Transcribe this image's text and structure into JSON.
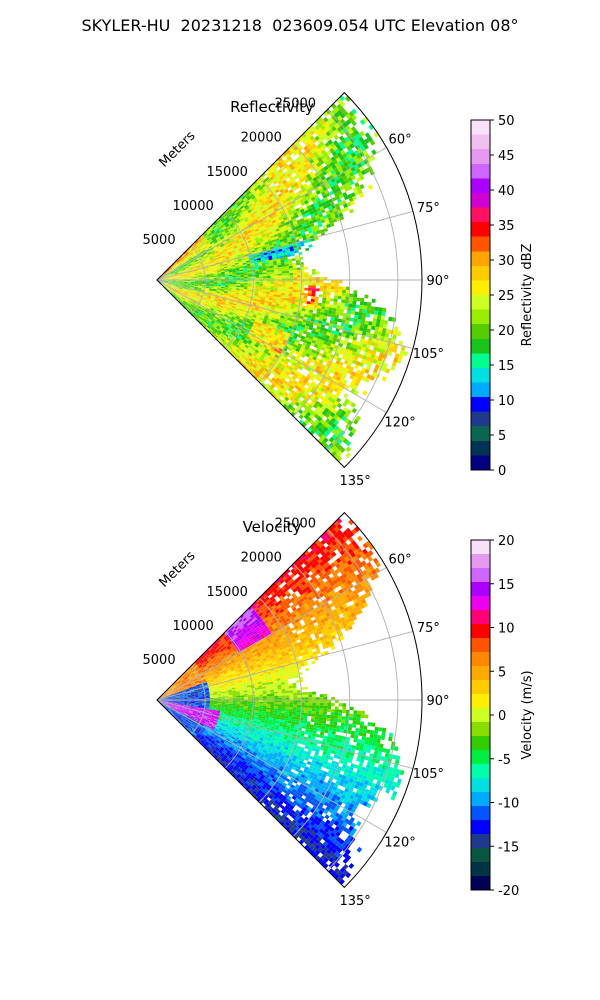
{
  "figure": {
    "title": "SKYLER-HU  20231218  023609.054 UTC Elevation 08°"
  },
  "chart_data": [
    {
      "type": "heatmap",
      "projection": "polar-sector",
      "title": "Reflectivity",
      "radial_label": "Meters",
      "radial_ticks": [
        5000,
        10000,
        15000,
        20000,
        25000
      ],
      "r_max": 27500,
      "theta_ticks": [
        "60°",
        "75°",
        "90°",
        "105°",
        "120°",
        "135°"
      ],
      "theta_range_deg": [
        45,
        135
      ],
      "grid": true,
      "colorbar": {
        "label": "Reflectivity dBZ",
        "ticks": [
          0,
          5,
          10,
          15,
          20,
          25,
          30,
          35,
          40,
          45,
          50
        ],
        "range": [
          0,
          50
        ]
      },
      "field_description_values": {
        "dominant_range": [
          18,
          30
        ],
        "max_observed": 37
      }
    },
    {
      "type": "heatmap",
      "projection": "polar-sector",
      "title": "Velocity",
      "radial_label": "Meters",
      "radial_ticks": [
        5000,
        10000,
        15000,
        20000,
        25000
      ],
      "r_max": 27500,
      "theta_ticks": [
        "60°",
        "75°",
        "90°",
        "105°",
        "120°",
        "135°"
      ],
      "theta_range_deg": [
        45,
        135
      ],
      "grid": true,
      "colorbar": {
        "label": "Velocity (m/s)",
        "ticks": [
          -20,
          -15,
          -10,
          -5,
          0,
          5,
          10,
          15,
          20
        ],
        "range": [
          -20,
          20
        ]
      },
      "field_description_values": {
        "north_sector_approx": 10,
        "center_approx": 0,
        "south_sector_approx": -12
      }
    }
  ],
  "colors": {
    "reflectivity_scale": [
      "#000080",
      "#003355",
      "#0a6650",
      "#1f3a8c",
      "#0000ff",
      "#00aaff",
      "#00e0e0",
      "#00ff90",
      "#18c41a",
      "#55cc00",
      "#99ee00",
      "#ccff22",
      "#ffee00",
      "#ffcc00",
      "#ffa500",
      "#ff5500",
      "#ff0000",
      "#ff1060",
      "#d000d0",
      "#aa00ff",
      "#cc66ff",
      "#e699ee",
      "#f0c0f0",
      "#f8e0f8"
    ],
    "velocity_scale": [
      "#000055",
      "#003344",
      "#0a5540",
      "#1f3a8c",
      "#0000ff",
      "#0055ff",
      "#00aaff",
      "#00e0e0",
      "#00ffaa",
      "#00ee44",
      "#33cc00",
      "#88dd00",
      "#ccff22",
      "#ffee00",
      "#ffcc00",
      "#ffaa00",
      "#ff8800",
      "#ff5500",
      "#ff0000",
      "#ff0077",
      "#ee00ee",
      "#aa00ff",
      "#cc66ff",
      "#e699ee",
      "#f8e0f8"
    ]
  }
}
